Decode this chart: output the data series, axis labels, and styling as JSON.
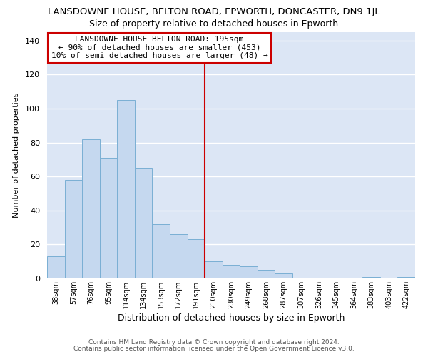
{
  "title": "LANSDOWNE HOUSE, BELTON ROAD, EPWORTH, DONCASTER, DN9 1JL",
  "subtitle": "Size of property relative to detached houses in Epworth",
  "xlabel": "Distribution of detached houses by size in Epworth",
  "ylabel": "Number of detached properties",
  "categories": [
    "38sqm",
    "57sqm",
    "76sqm",
    "95sqm",
    "114sqm",
    "134sqm",
    "153sqm",
    "172sqm",
    "191sqm",
    "210sqm",
    "230sqm",
    "249sqm",
    "268sqm",
    "287sqm",
    "307sqm",
    "326sqm",
    "345sqm",
    "364sqm",
    "383sqm",
    "403sqm",
    "422sqm"
  ],
  "values": [
    13,
    58,
    82,
    71,
    105,
    65,
    32,
    26,
    23,
    10,
    8,
    7,
    5,
    3,
    0,
    0,
    0,
    0,
    1,
    0,
    1
  ],
  "bar_color": "#c5d8ef",
  "bar_edge_color": "#7aafd4",
  "vline_x": 8.5,
  "vline_color": "#cc0000",
  "annotation_title": "LANSDOWNE HOUSE BELTON ROAD: 195sqm",
  "annotation_line1": "← 90% of detached houses are smaller (453)",
  "annotation_line2": "10% of semi-detached houses are larger (48) →",
  "annotation_box_color": "#ffffff",
  "annotation_box_edge": "#cc0000",
  "ylim": [
    0,
    145
  ],
  "yticks": [
    0,
    20,
    40,
    60,
    80,
    100,
    120,
    140
  ],
  "footer1": "Contains HM Land Registry data © Crown copyright and database right 2024.",
  "footer2": "Contains public sector information licensed under the Open Government Licence v3.0.",
  "plot_bg_color": "#dce6f5",
  "fig_bg_color": "#ffffff",
  "grid_color": "#ffffff",
  "title_fontsize": 9.5,
  "subtitle_fontsize": 9
}
